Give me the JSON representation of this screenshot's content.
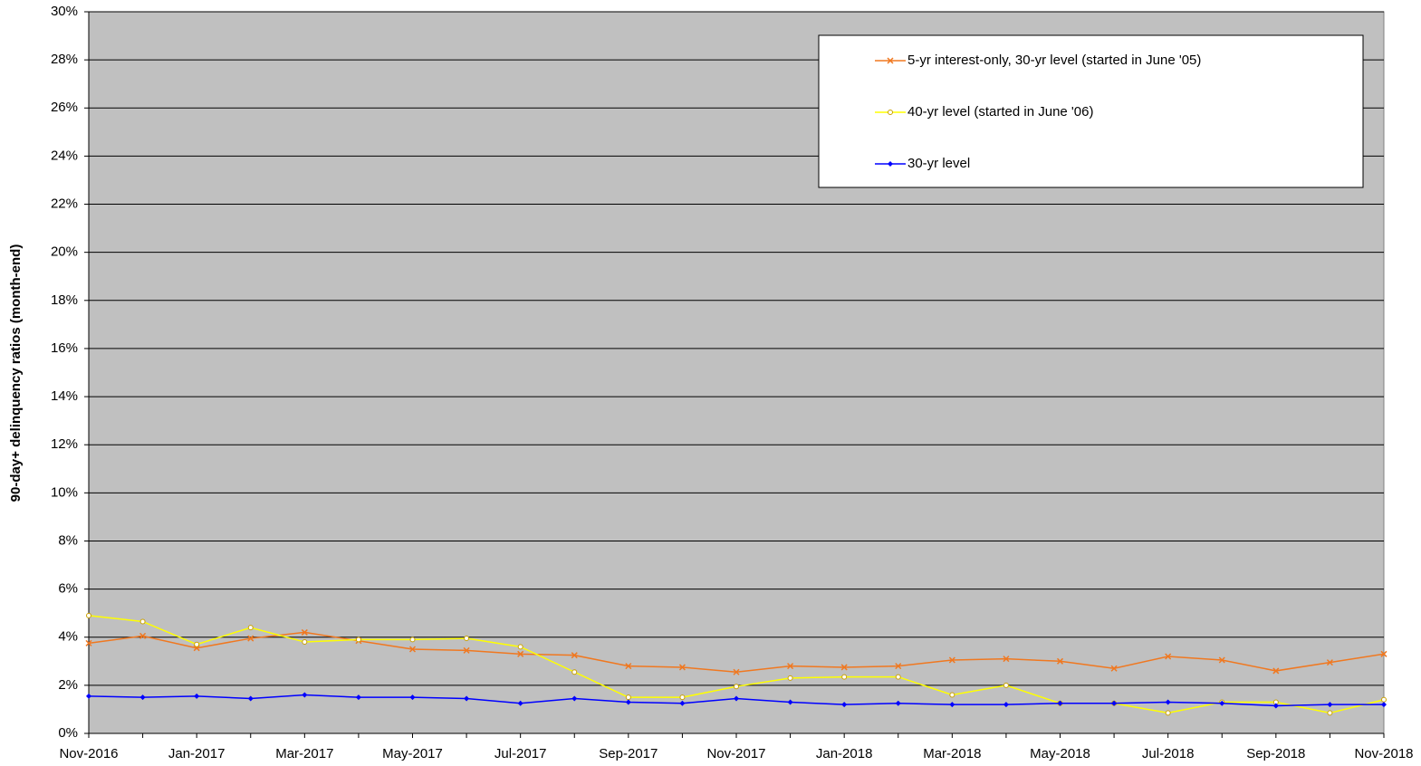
{
  "chart_data": {
    "type": "line",
    "y_label": "90-day+ delinquency ratios (month-end)",
    "categories": [
      "Nov-2016",
      null,
      "Jan-2017",
      null,
      "Mar-2017",
      null,
      "May-2017",
      null,
      "Jul-2017",
      null,
      "Sep-2017",
      null,
      "Nov-2017",
      null,
      "Jan-2018",
      null,
      "Mar-2018",
      null,
      "May-2018",
      null,
      "Jul-2018",
      null,
      "Sep-2018",
      null,
      "Nov-2018"
    ],
    "series": [
      {
        "name": "5-yr interest-only, 30-yr level (started in June '05)",
        "color": "#f07820",
        "marker": "x",
        "values": [
          3.75,
          4.05,
          3.55,
          3.95,
          4.2,
          3.85,
          3.5,
          3.45,
          3.3,
          3.25,
          2.8,
          2.75,
          2.55,
          2.8,
          2.75,
          2.8,
          3.05,
          3.1,
          3.0,
          2.7,
          3.2,
          3.05,
          2.6,
          2.95,
          3.3
        ]
      },
      {
        "name": "40-yr level (started in June '06)",
        "color": "#ffff00",
        "marker": "circle",
        "values": [
          4.9,
          4.65,
          3.7,
          4.4,
          3.8,
          3.9,
          3.9,
          3.95,
          3.6,
          2.55,
          1.5,
          1.5,
          1.95,
          2.3,
          2.35,
          2.35,
          1.6,
          2.0,
          1.25,
          1.25,
          0.85,
          1.3,
          1.3,
          0.85,
          1.4
        ]
      },
      {
        "name": "30-yr level",
        "color": "#0000ff",
        "marker": "diamond",
        "values": [
          1.55,
          1.5,
          1.55,
          1.45,
          1.6,
          1.5,
          1.5,
          1.45,
          1.25,
          1.45,
          1.3,
          1.25,
          1.45,
          1.3,
          1.2,
          1.25,
          1.2,
          1.2,
          1.25,
          1.25,
          1.3,
          1.25,
          1.15,
          1.2,
          1.2
        ]
      }
    ],
    "ylim": [
      0,
      30
    ],
    "yticks": [
      {
        "value": 0,
        "label": "0%"
      },
      {
        "value": 2,
        "label": "2%"
      },
      {
        "value": 4,
        "label": "4%"
      },
      {
        "value": 6,
        "label": "6%"
      },
      {
        "value": 8,
        "label": "8%"
      },
      {
        "value": 10,
        "label": "10%"
      },
      {
        "value": 12,
        "label": "12%"
      },
      {
        "value": 14,
        "label": "14%"
      },
      {
        "value": 16,
        "label": "16%"
      },
      {
        "value": 18,
        "label": "18%"
      },
      {
        "value": 20,
        "label": "20%"
      },
      {
        "value": 22,
        "label": "22%"
      },
      {
        "value": 24,
        "label": "24%"
      },
      {
        "value": 26,
        "label": "26%"
      },
      {
        "value": 28,
        "label": "28%"
      },
      {
        "value": 30,
        "label": "30%"
      }
    ],
    "grid": true,
    "plot_background": "#c0c0c0",
    "legend": "upper right"
  }
}
